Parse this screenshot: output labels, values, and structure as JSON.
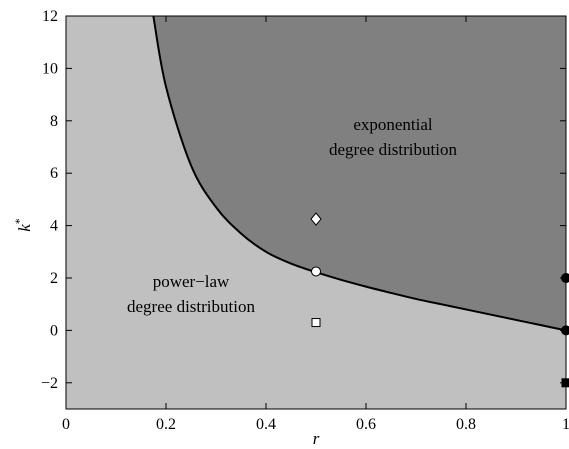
{
  "chart_data": {
    "type": "area",
    "xlabel": "r",
    "ylabel": "k",
    "ylabel_superscript": "*",
    "xlim": [
      0,
      1
    ],
    "ylim": [
      -3,
      12
    ],
    "xticks": [
      0,
      0.2,
      0.4,
      0.6,
      0.8,
      1
    ],
    "yticks": [
      -2,
      0,
      2,
      4,
      6,
      8,
      10,
      12
    ],
    "xtick_labels": [
      "0",
      "0.2",
      "0.4",
      "0.6",
      "0.8",
      "1"
    ],
    "ytick_labels": [
      "−2",
      "0",
      "2",
      "4",
      "6",
      "8",
      "10",
      "12"
    ],
    "grid": false,
    "boundary": {
      "description": "k* = 1/r^2 - 1 + ... boundary curve (estimated from figure)",
      "x": [
        0.17,
        0.2,
        0.25,
        0.3,
        0.35,
        0.4,
        0.45,
        0.5,
        0.55,
        0.6,
        0.65,
        0.7,
        0.75,
        0.8,
        0.85,
        0.9,
        0.95,
        1.0
      ],
      "y": [
        12.5,
        9.3,
        6.3,
        4.7,
        3.7,
        3.0,
        2.55,
        2.22,
        1.93,
        1.67,
        1.43,
        1.2,
        1.0,
        0.8,
        0.6,
        0.4,
        0.2,
        0.0
      ]
    },
    "regions": {
      "upper": {
        "label_line1": "exponential",
        "label_line2": "degree distribution",
        "color": "#808080"
      },
      "lower": {
        "label_line1": "power−law",
        "label_line2": "degree distribution",
        "color": "#c0c0c0"
      }
    },
    "points": [
      {
        "name": "diamond",
        "shape": "diamond",
        "fill": "#ffffff",
        "x": 0.5,
        "y": 4.25
      },
      {
        "name": "open-circle",
        "shape": "circle",
        "fill": "#ffffff",
        "x": 0.5,
        "y": 2.25
      },
      {
        "name": "open-square",
        "shape": "square",
        "fill": "#ffffff",
        "x": 0.5,
        "y": 0.3
      },
      {
        "name": "filled-circle-top",
        "shape": "circle",
        "fill": "#000000",
        "x": 1.0,
        "y": 2.0
      },
      {
        "name": "filled-circle-zero",
        "shape": "circle",
        "fill": "#000000",
        "x": 1.0,
        "y": 0.0
      },
      {
        "name": "filled-square",
        "shape": "square",
        "fill": "#000000",
        "x": 1.0,
        "y": -2.0
      }
    ]
  }
}
